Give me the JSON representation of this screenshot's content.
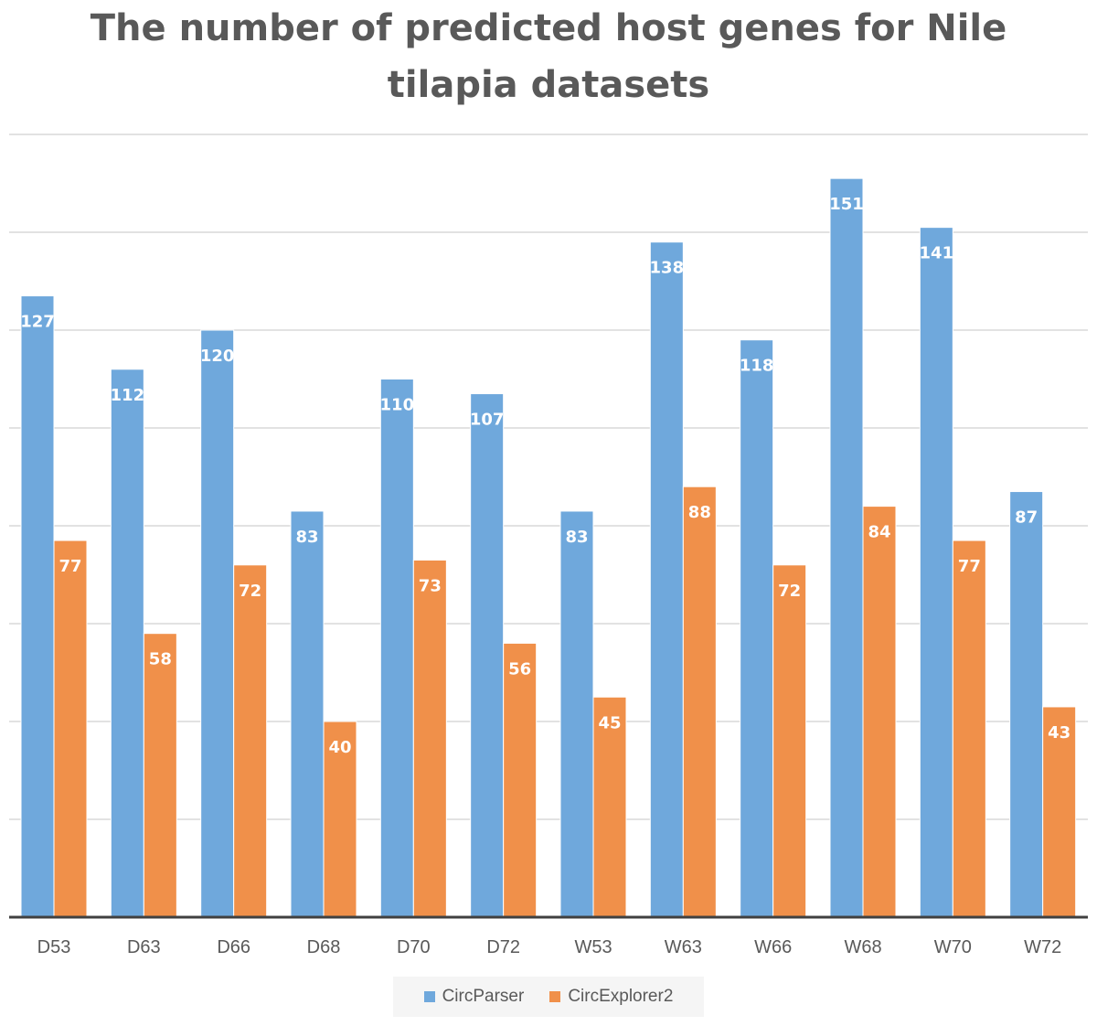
{
  "chart_data": {
    "type": "bar",
    "title_line1": "The number of predicted host genes for Nile",
    "title_line2": "tilapia datasets",
    "categories": [
      "D53",
      "D63",
      "D66",
      "D68",
      "D70",
      "D72",
      "W53",
      "W63",
      "W66",
      "W68",
      "W70",
      "W72"
    ],
    "series": [
      {
        "name": "CircParser",
        "color": "#6FA8DC",
        "values": [
          127,
          112,
          120,
          83,
          110,
          107,
          83,
          138,
          118,
          151,
          141,
          87
        ]
      },
      {
        "name": "CircExplorer2",
        "color": "#F0904A",
        "values": [
          77,
          58,
          72,
          40,
          73,
          56,
          45,
          88,
          72,
          84,
          77,
          43
        ]
      }
    ],
    "ylim": [
      0,
      160
    ],
    "grid": true,
    "legend": "bottom"
  }
}
